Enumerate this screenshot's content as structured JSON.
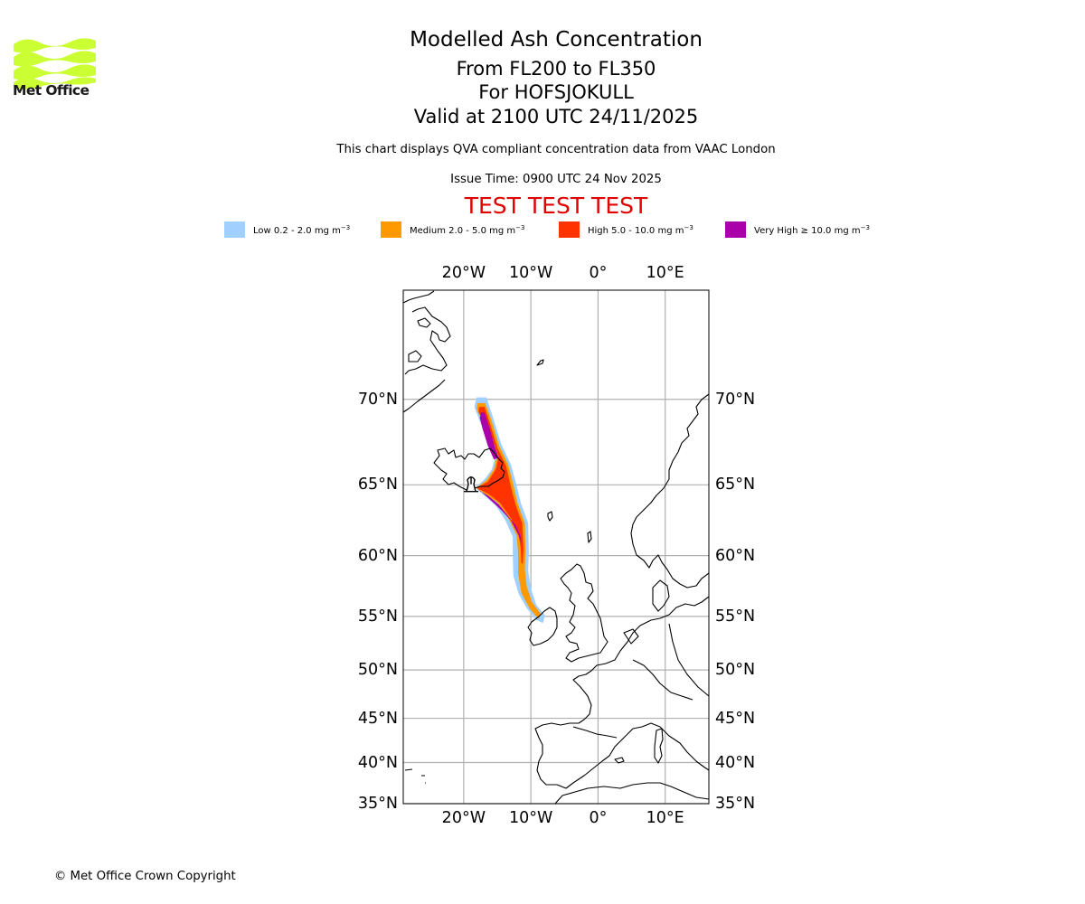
{
  "header": {
    "logo_text": "Met Office",
    "logo_color": "#ccff33",
    "title": "Modelled Ash Concentration",
    "level_range": "From FL200 to FL350",
    "volcano": "For HOFSJOKULL",
    "valid_time": "Valid at 2100 UTC 24/11/2025",
    "description": "This chart displays QVA compliant concentration data from VAAC London",
    "issue_time": "Issue Time: 0900 UTC 24 Nov 2025",
    "test_banner": "TEST TEST TEST"
  },
  "legend": [
    {
      "key": "low",
      "label": "Low 0.2 - 2.0 mg m",
      "exponent": "−3",
      "color": "#a0d0ff"
    },
    {
      "key": "medium",
      "label": "Medium 2.0 - 5.0 mg m",
      "exponent": "−3",
      "color": "#ff9900"
    },
    {
      "key": "high",
      "label": "High 5.0 - 10.0 mg m",
      "exponent": "−3",
      "color": "#ff3300"
    },
    {
      "key": "very-high",
      "label": "Very High  ≥  10.0 mg m",
      "exponent": "−3",
      "color": "#aa00aa"
    }
  ],
  "map": {
    "lon_ticks": [
      {
        "value": -20,
        "label": "20°W"
      },
      {
        "value": -10,
        "label": "10°W"
      },
      {
        "value": 0,
        "label": "0°"
      },
      {
        "value": 10,
        "label": "10°E"
      }
    ],
    "lat_ticks": [
      {
        "value": 70,
        "label": "70°N"
      },
      {
        "value": 65,
        "label": "65°N"
      },
      {
        "value": 60,
        "label": "60°N"
      },
      {
        "value": 55,
        "label": "55°N"
      },
      {
        "value": 50,
        "label": "50°N"
      },
      {
        "value": 45,
        "label": "45°N"
      },
      {
        "value": 40,
        "label": "40°N"
      },
      {
        "value": 35,
        "label": "35°N"
      }
    ],
    "extent": {
      "lon_min": -29,
      "lon_max": 16.5,
      "lat_min": 35,
      "lat_max": 75
    },
    "gridline_color": "#b0b0b0",
    "volcano_marker": {
      "name": "HOFSJOKULL",
      "lon": -18.9,
      "lat": 64.8
    },
    "plume_levels": [
      {
        "level": "low",
        "color": "#a0d0ff",
        "outline": [
          [
            -18.1,
            70.1
          ],
          [
            -16.6,
            70.1
          ],
          [
            -15.8,
            69.2
          ],
          [
            -14.4,
            67.5
          ],
          [
            -13.0,
            66.3
          ],
          [
            -12.2,
            65.1
          ],
          [
            -11.5,
            63.8
          ],
          [
            -10.4,
            62.4
          ],
          [
            -10.3,
            60.3
          ],
          [
            -10.4,
            58.8
          ],
          [
            -10.0,
            57.4
          ],
          [
            -9.2,
            56.0
          ],
          [
            -7.9,
            55.1
          ],
          [
            -8.2,
            54.4
          ],
          [
            -9.2,
            54.7
          ],
          [
            -10.6,
            55.7
          ],
          [
            -11.8,
            56.9
          ],
          [
            -12.6,
            58.4
          ],
          [
            -12.7,
            60.2
          ],
          [
            -12.7,
            61.4
          ],
          [
            -13.8,
            62.6
          ],
          [
            -15.2,
            63.6
          ],
          [
            -16.7,
            64.2
          ],
          [
            -18.3,
            64.8
          ],
          [
            -16.8,
            65.4
          ],
          [
            -15.8,
            66.0
          ],
          [
            -15.4,
            66.6
          ],
          [
            -16.2,
            67.7
          ],
          [
            -17.6,
            68.8
          ],
          [
            -18.4,
            69.6
          ]
        ]
      },
      {
        "level": "medium",
        "color": "#ff9900",
        "outline": [
          [
            -17.9,
            69.8
          ],
          [
            -16.8,
            69.8
          ],
          [
            -15.9,
            68.9
          ],
          [
            -14.7,
            67.4
          ],
          [
            -13.4,
            66.3
          ],
          [
            -12.6,
            65.0
          ],
          [
            -12.0,
            63.8
          ],
          [
            -10.9,
            62.4
          ],
          [
            -10.8,
            60.3
          ],
          [
            -10.9,
            58.9
          ],
          [
            -10.6,
            57.5
          ],
          [
            -9.8,
            56.2
          ],
          [
            -8.5,
            55.2
          ],
          [
            -8.9,
            54.8
          ],
          [
            -10.2,
            55.7
          ],
          [
            -11.4,
            57.0
          ],
          [
            -11.9,
            58.6
          ],
          [
            -11.9,
            60.2
          ],
          [
            -12.1,
            61.5
          ],
          [
            -13.3,
            62.7
          ],
          [
            -14.9,
            63.8
          ],
          [
            -16.5,
            64.3
          ],
          [
            -18.2,
            64.8
          ],
          [
            -16.6,
            65.3
          ],
          [
            -15.5,
            66.0
          ],
          [
            -15.1,
            66.7
          ],
          [
            -16.0,
            67.8
          ],
          [
            -17.3,
            68.9
          ],
          [
            -18.1,
            69.5
          ]
        ]
      },
      {
        "level": "high",
        "color": "#ff3300",
        "outline": [
          [
            -17.7,
            69.6
          ],
          [
            -16.9,
            69.6
          ],
          [
            -16.1,
            68.7
          ],
          [
            -15.0,
            67.3
          ],
          [
            -13.7,
            66.2
          ],
          [
            -13.0,
            64.9
          ],
          [
            -12.3,
            63.7
          ],
          [
            -11.3,
            62.4
          ],
          [
            -11.1,
            60.5
          ],
          [
            -11.2,
            59.4
          ],
          [
            -11.4,
            59.4
          ],
          [
            -11.5,
            60.5
          ],
          [
            -11.8,
            61.6
          ],
          [
            -12.9,
            62.7
          ],
          [
            -14.6,
            63.8
          ],
          [
            -16.3,
            64.4
          ],
          [
            -18.1,
            64.8
          ],
          [
            -16.4,
            65.2
          ],
          [
            -15.2,
            66.0
          ],
          [
            -14.8,
            66.8
          ],
          [
            -15.8,
            67.9
          ],
          [
            -17.1,
            68.9
          ],
          [
            -17.8,
            69.3
          ]
        ]
      },
      {
        "level": "very-high",
        "color": "#aa00aa",
        "outline": [
          [
            -17.4,
            69.3
          ],
          [
            -16.9,
            69.3
          ],
          [
            -16.2,
            68.5
          ],
          [
            -15.4,
            67.4
          ],
          [
            -14.8,
            66.7
          ],
          [
            -15.5,
            66.6
          ],
          [
            -16.4,
            67.4
          ],
          [
            -17.2,
            68.4
          ],
          [
            -17.6,
            69.0
          ]
        ]
      },
      {
        "level": "very-high",
        "color": "#aa00aa",
        "outline": [
          [
            -18.0,
            64.7
          ],
          [
            -16.4,
            64.3
          ],
          [
            -14.8,
            63.7
          ],
          [
            -13.4,
            62.9
          ],
          [
            -12.2,
            62.2
          ],
          [
            -11.5,
            61.4
          ],
          [
            -11.4,
            60.9
          ],
          [
            -11.9,
            61.6
          ],
          [
            -13.0,
            62.6
          ],
          [
            -14.4,
            63.3
          ],
          [
            -16.0,
            64.0
          ],
          [
            -17.5,
            64.6
          ]
        ]
      }
    ]
  },
  "footer": {
    "copyright": "© Met Office Crown Copyright"
  }
}
